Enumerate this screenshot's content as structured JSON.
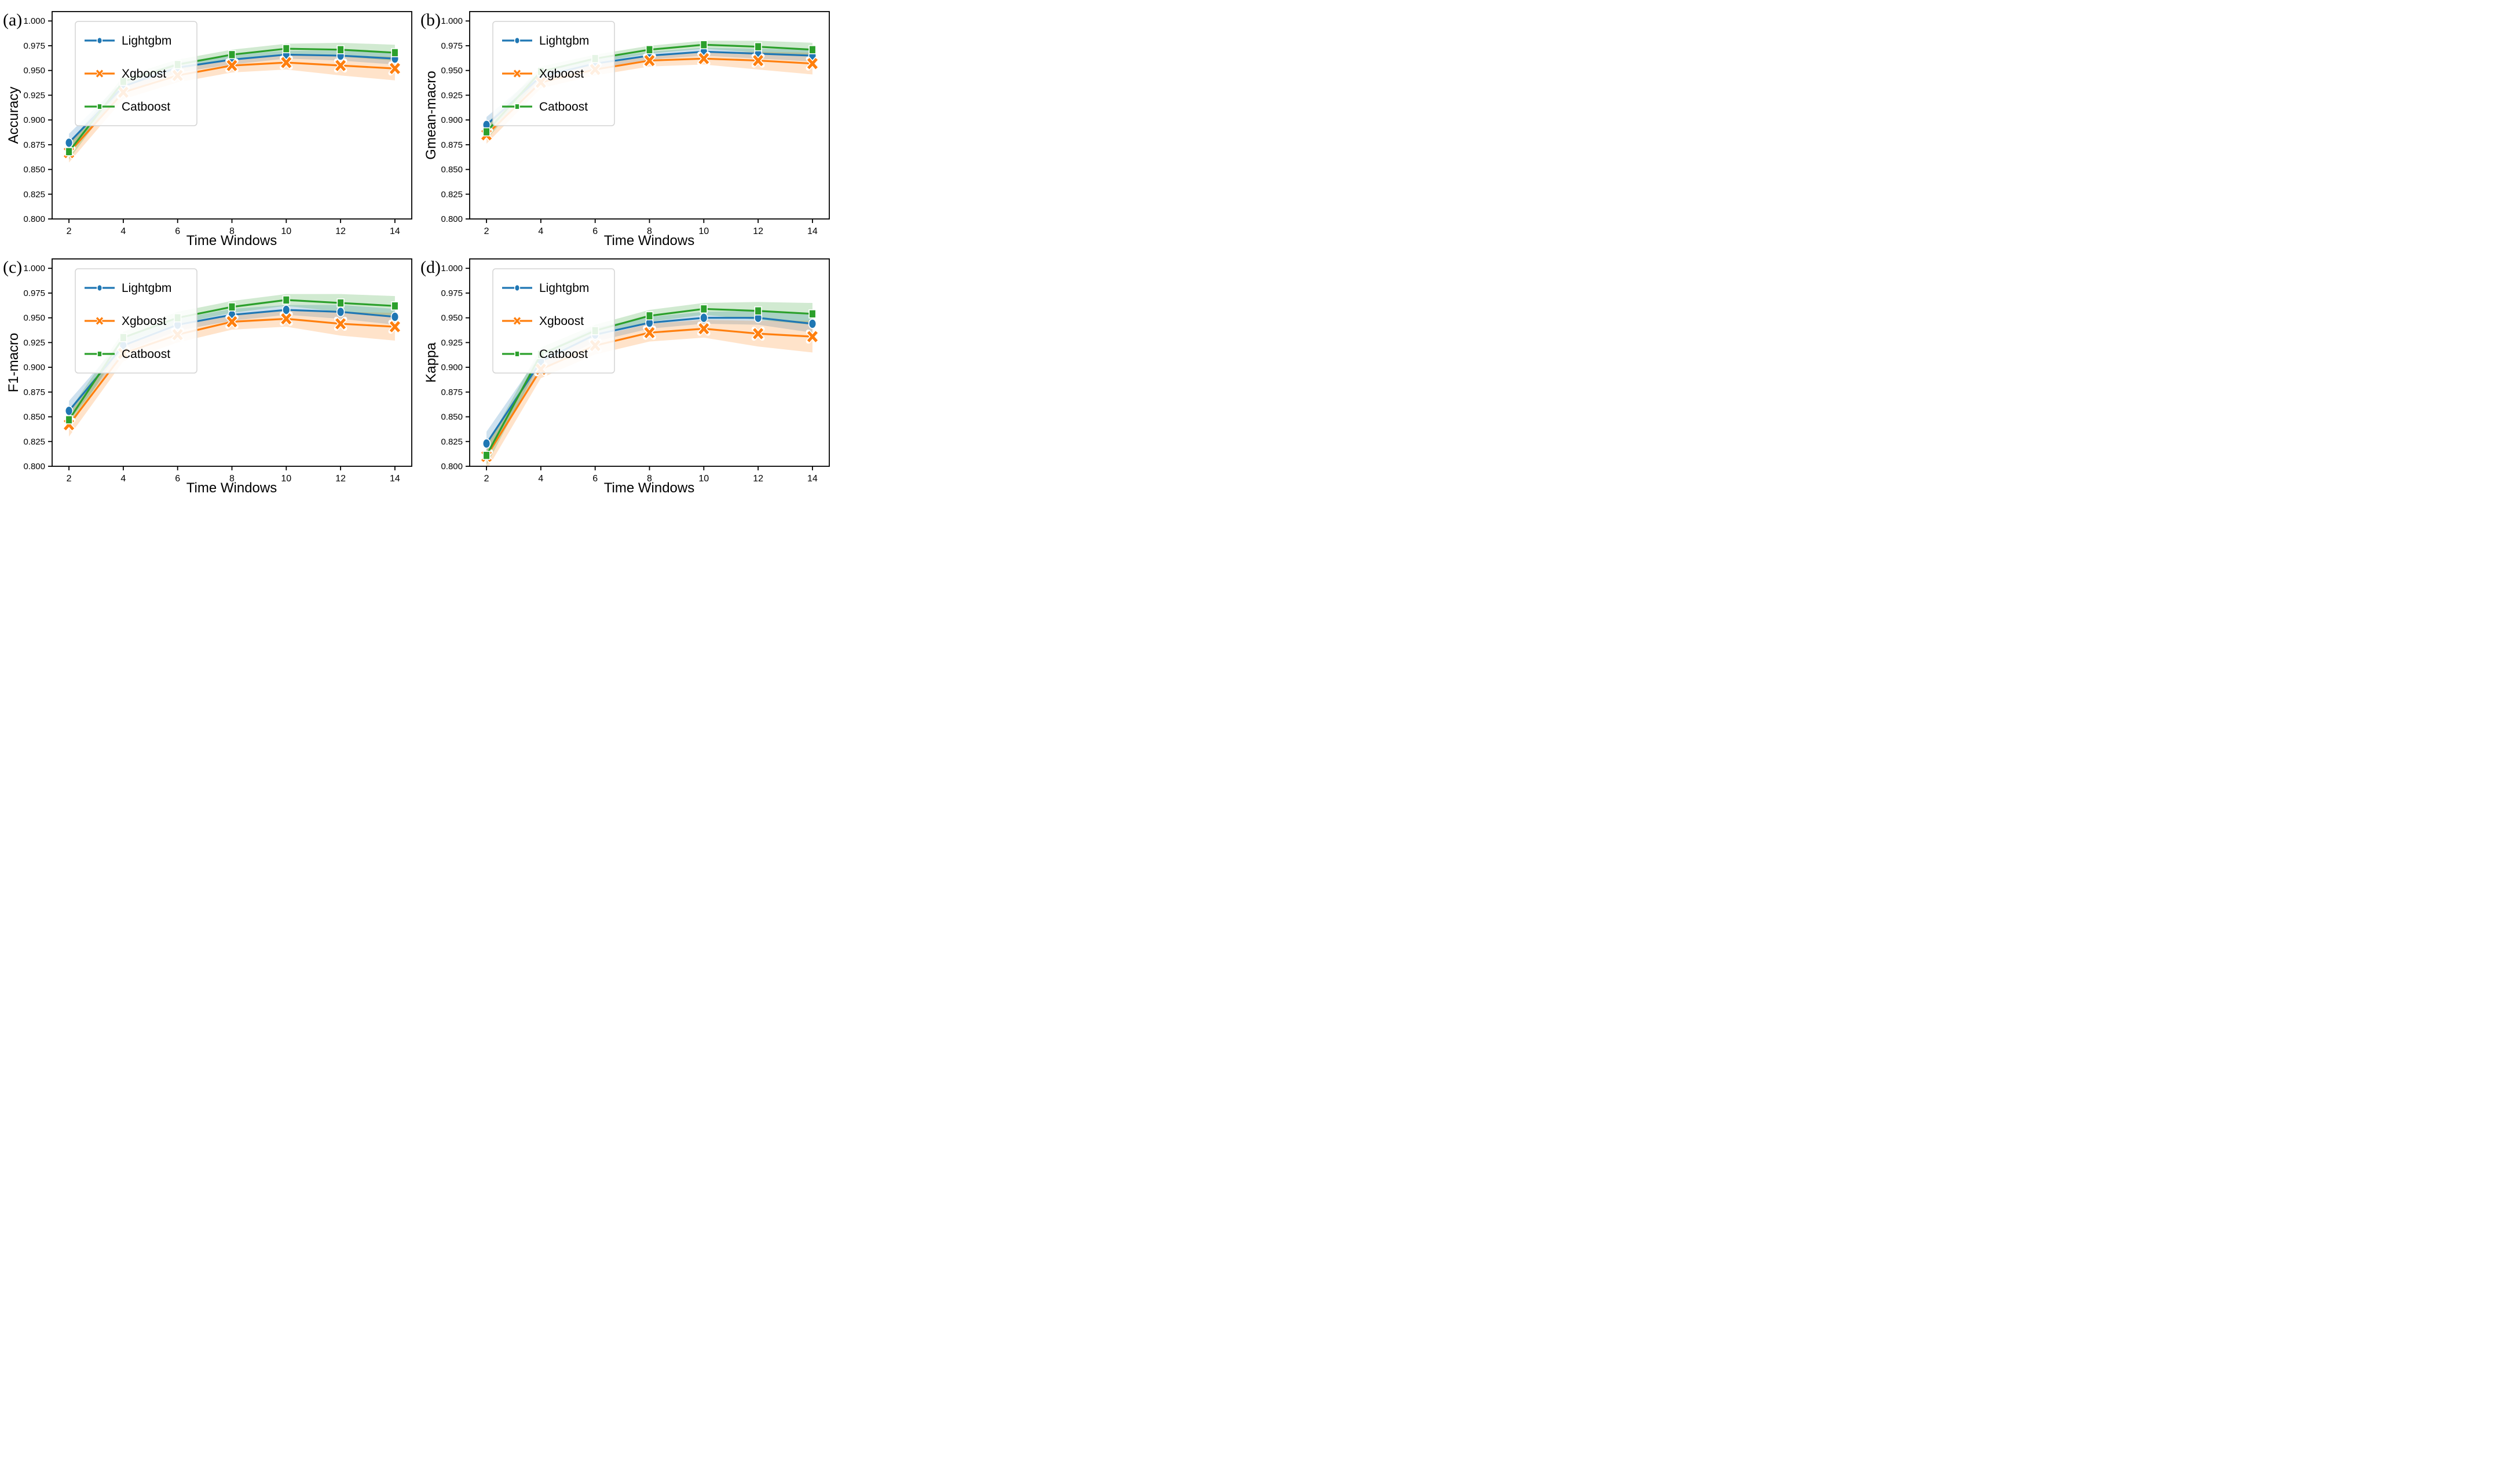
{
  "chart_data": {
    "type": "line",
    "title": "",
    "xlabel": "Time Windows",
    "x": [
      2,
      4,
      6,
      8,
      10,
      12,
      14
    ],
    "x_ticks": [
      2,
      4,
      6,
      8,
      10,
      12,
      14
    ],
    "y_ticks": [
      0.8,
      0.825,
      0.85,
      0.875,
      0.9,
      0.925,
      0.95,
      0.975,
      1.0
    ],
    "xlim": [
      1.38,
      14.62
    ],
    "ylim": [
      0.8,
      1.0095
    ],
    "grid": false,
    "legend_position": "upper-left",
    "legend": [
      "Lightgbm",
      "Xgboost",
      "Catboost"
    ],
    "series_meta": [
      {
        "id": "lightgbm",
        "name": "Lightgbm",
        "color": "#1f77b4",
        "marker": "circle"
      },
      {
        "id": "xgboost",
        "name": "Xgboost",
        "color": "#ff7f0e",
        "marker": "x"
      },
      {
        "id": "catboost",
        "name": "Catboost",
        "color": "#2ca02c",
        "marker": "square"
      }
    ],
    "band_opacity": 0.22,
    "panels": [
      {
        "id": "a",
        "tag": "(a)",
        "ylabel": "Accuracy",
        "xlabel": "Time Windows",
        "series": [
          {
            "name": "Lightgbm",
            "values": [
              0.877,
              0.934,
              0.953,
              0.961,
              0.966,
              0.965,
              0.962
            ],
            "band": [
              0.009,
              0.006,
              0.005,
              0.005,
              0.004,
              0.005,
              0.006
            ]
          },
          {
            "name": "Xgboost",
            "values": [
              0.867,
              0.928,
              0.945,
              0.955,
              0.958,
              0.955,
              0.952
            ],
            "band": [
              0.01,
              0.007,
              0.007,
              0.007,
              0.007,
              0.01,
              0.012
            ]
          },
          {
            "name": "Catboost",
            "values": [
              0.868,
              0.939,
              0.956,
              0.966,
              0.972,
              0.971,
              0.968
            ],
            "band": [
              0.008,
              0.005,
              0.005,
              0.005,
              0.005,
              0.007,
              0.008
            ]
          }
        ]
      },
      {
        "id": "b",
        "tag": "(b)",
        "ylabel": "Gmean-macro",
        "xlabel": "Time Windows",
        "series": [
          {
            "name": "Lightgbm",
            "values": [
              0.895,
              0.944,
              0.957,
              0.965,
              0.969,
              0.967,
              0.965
            ],
            "band": [
              0.008,
              0.005,
              0.005,
              0.004,
              0.004,
              0.005,
              0.006
            ]
          },
          {
            "name": "Xgboost",
            "values": [
              0.885,
              0.938,
              0.951,
              0.96,
              0.962,
              0.96,
              0.957
            ],
            "band": [
              0.009,
              0.006,
              0.006,
              0.006,
              0.006,
              0.009,
              0.011
            ]
          },
          {
            "name": "Catboost",
            "values": [
              0.888,
              0.949,
              0.962,
              0.971,
              0.976,
              0.974,
              0.971
            ],
            "band": [
              0.008,
              0.005,
              0.004,
              0.004,
              0.004,
              0.006,
              0.007
            ]
          }
        ]
      },
      {
        "id": "c",
        "tag": "(c)",
        "ylabel": "F1-macro",
        "xlabel": "Time Windows",
        "series": [
          {
            "name": "Lightgbm",
            "values": [
              0.856,
              0.922,
              0.943,
              0.953,
              0.958,
              0.956,
              0.951
            ],
            "band": [
              0.01,
              0.007,
              0.006,
              0.006,
              0.005,
              0.007,
              0.008
            ]
          },
          {
            "name": "Xgboost",
            "values": [
              0.842,
              0.914,
              0.933,
              0.946,
              0.949,
              0.944,
              0.941
            ],
            "band": [
              0.012,
              0.008,
              0.008,
              0.008,
              0.008,
              0.012,
              0.014
            ]
          },
          {
            "name": "Catboost",
            "values": [
              0.847,
              0.93,
              0.95,
              0.961,
              0.968,
              0.965,
              0.962
            ],
            "band": [
              0.009,
              0.006,
              0.006,
              0.006,
              0.006,
              0.009,
              0.01
            ]
          }
        ]
      },
      {
        "id": "d",
        "tag": "(d)",
        "ylabel": "Kappa",
        "xlabel": "Time Windows",
        "series": [
          {
            "name": "Lightgbm",
            "values": [
              0.823,
              0.906,
              0.933,
              0.945,
              0.95,
              0.95,
              0.944
            ],
            "band": [
              0.012,
              0.008,
              0.007,
              0.006,
              0.006,
              0.007,
              0.009
            ]
          },
          {
            "name": "Xgboost",
            "values": [
              0.81,
              0.898,
              0.922,
              0.935,
              0.939,
              0.934,
              0.931
            ],
            "band": [
              0.014,
              0.009,
              0.009,
              0.009,
              0.009,
              0.013,
              0.016
            ]
          },
          {
            "name": "Catboost",
            "values": [
              0.811,
              0.913,
              0.937,
              0.952,
              0.959,
              0.957,
              0.954
            ],
            "band": [
              0.01,
              0.007,
              0.006,
              0.006,
              0.006,
              0.009,
              0.011
            ]
          }
        ]
      }
    ]
  },
  "colors": {
    "lightgbm": "#1f77b4",
    "xgboost": "#ff7f0e",
    "catboost": "#2ca02c",
    "axis": "#000000",
    "legend_border": "#d4d4d4",
    "background": "#ffffff"
  }
}
